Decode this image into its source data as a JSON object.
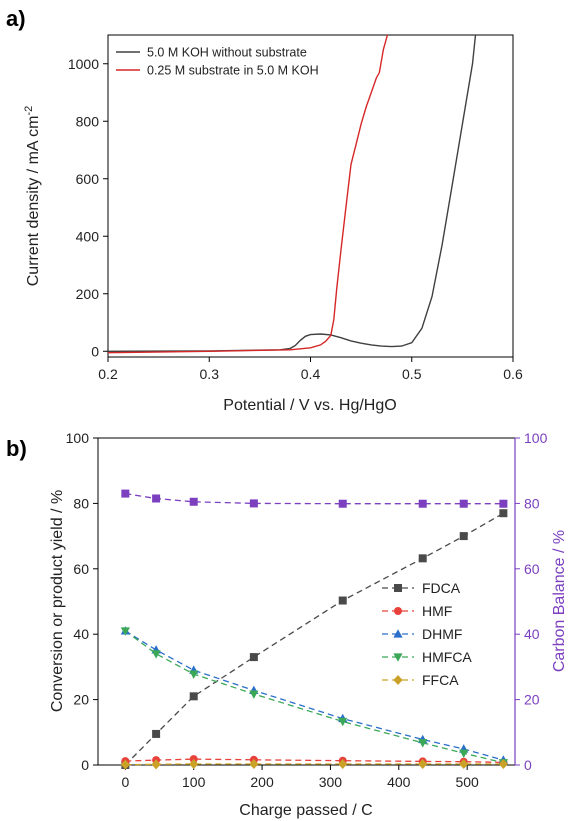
{
  "chart_data": [
    {
      "type": "line",
      "panel_label": "a)",
      "xlabel": "Potential / V vs. Hg/HgO",
      "ylabel_main": "Current density / mA cm",
      "ylabel_sup": "-2",
      "xlim": [
        0.2,
        0.6
      ],
      "ylim": [
        -20,
        1100
      ],
      "xticks": [
        0.2,
        0.3,
        0.4,
        0.5,
        0.6
      ],
      "yticks": [
        0,
        200,
        400,
        600,
        800,
        1000
      ],
      "legend_position": "top-left",
      "grid": false,
      "series": [
        {
          "name": "5.0 M KOH without substrate",
          "color": "#404040",
          "x": [
            0.2,
            0.3,
            0.37,
            0.38,
            0.385,
            0.39,
            0.395,
            0.4,
            0.41,
            0.42,
            0.43,
            0.44,
            0.45,
            0.46,
            0.47,
            0.48,
            0.49,
            0.5,
            0.51,
            0.52,
            0.53,
            0.54,
            0.55,
            0.56,
            0.563
          ],
          "y": [
            0,
            1,
            5,
            10,
            20,
            38,
            52,
            58,
            60,
            57,
            47,
            36,
            28,
            22,
            18,
            16,
            18,
            30,
            80,
            190,
            370,
            580,
            790,
            1000,
            1100
          ]
        },
        {
          "name": "0.25 M substrate in 5.0 M KOH",
          "color": "#d62728",
          "x": [
            0.2,
            0.3,
            0.38,
            0.4,
            0.41,
            0.415,
            0.42,
            0.423,
            0.426,
            0.43,
            0.435,
            0.44,
            0.445,
            0.45,
            0.455,
            0.46,
            0.465,
            0.468,
            0.472,
            0.476
          ],
          "y": [
            -5,
            0,
            5,
            12,
            22,
            35,
            55,
            110,
            220,
            350,
            500,
            650,
            720,
            790,
            850,
            900,
            950,
            970,
            1050,
            1100
          ]
        }
      ]
    },
    {
      "type": "line",
      "panel_label": "b)",
      "xlabel": "Charge passed / C",
      "ylabel": "Conversion or product yield / %",
      "ylabel_right": "Carbon Balance / %",
      "xlim": [
        -40,
        570
      ],
      "ylim": [
        0,
        100
      ],
      "ylim_right": [
        0,
        100
      ],
      "xticks": [
        0,
        100,
        200,
        300,
        400,
        500
      ],
      "yticks": [
        0,
        20,
        40,
        60,
        80,
        100
      ],
      "legend_position": "center-right",
      "grid": false,
      "x": [
        0,
        45,
        100,
        188,
        318,
        435,
        495,
        553
      ],
      "series": [
        {
          "name": "FDCA",
          "marker": "square",
          "color": "#4a4a4a",
          "values": [
            0,
            9.5,
            21,
            33,
            50.3,
            63.2,
            70,
            77
          ]
        },
        {
          "name": "HMF",
          "marker": "circle",
          "color": "#e8413b",
          "values": [
            1.2,
            1.5,
            1.8,
            1.6,
            1.3,
            1.1,
            1.0,
            0.8
          ]
        },
        {
          "name": "DHMF",
          "marker": "triangle-up",
          "color": "#2a6fc9",
          "values": [
            41,
            35.2,
            29,
            22.8,
            14.2,
            7.8,
            4.9,
            1.5
          ]
        },
        {
          "name": "HMFCA",
          "marker": "triangle-down",
          "color": "#3aa857",
          "values": [
            41,
            34,
            27.8,
            21.7,
            13.3,
            6.8,
            3.6,
            0.7
          ]
        },
        {
          "name": "FFCA",
          "marker": "diamond",
          "color": "#c9a227",
          "values": [
            0.1,
            0.2,
            0.3,
            0.3,
            0.3,
            0.3,
            0.3,
            0.3
          ]
        },
        {
          "name": "",
          "axis": "right",
          "marker": "square",
          "color": "#7b3fbf",
          "values": [
            83,
            81.5,
            80.5,
            80,
            79.9,
            79.9,
            79.9,
            79.9
          ]
        }
      ]
    }
  ]
}
